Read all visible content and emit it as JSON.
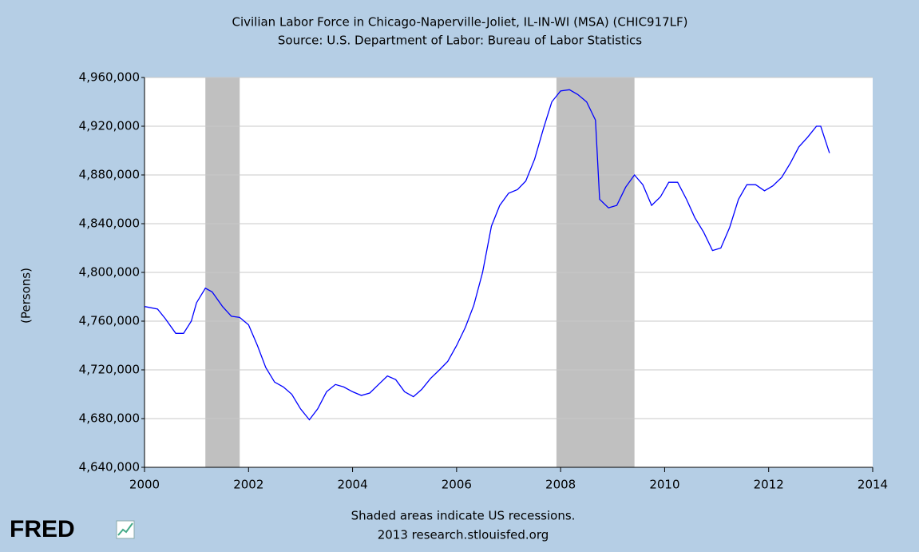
{
  "chart_data": {
    "type": "line",
    "title": "Civilian Labor Force in Chicago-Naperville-Joliet, IL-IN-WI (MSA) (CHIC917LF)",
    "subtitle": "Source: U.S. Department of Labor: Bureau of Labor Statistics",
    "y_label": "(Persons)",
    "note": "Shaded areas indicate US recessions.",
    "credit": "2013 research.stlouisfed.org",
    "logo": "FRED",
    "xlim": [
      2000,
      2014
    ],
    "xticks": [
      2000,
      2002,
      2004,
      2006,
      2008,
      2010,
      2012,
      2014
    ],
    "ylim": [
      4640000,
      4960000
    ],
    "yticks": [
      {
        "value": 4640000,
        "label": "4,640,000"
      },
      {
        "value": 4680000,
        "label": "4,680,000"
      },
      {
        "value": 4720000,
        "label": "4,720,000"
      },
      {
        "value": 4760000,
        "label": "4,760,000"
      },
      {
        "value": 4800000,
        "label": "4,800,000"
      },
      {
        "value": 4840000,
        "label": "4,840,000"
      },
      {
        "value": 4880000,
        "label": "4,880,000"
      },
      {
        "value": 4920000,
        "label": "4,920,000"
      },
      {
        "value": 4960000,
        "label": "4,960,000"
      }
    ],
    "grid": true,
    "recessions": [
      [
        2001.17,
        2001.83
      ],
      [
        2007.92,
        2009.42
      ]
    ],
    "recession_color": "#c0c0c0",
    "series": [
      {
        "color": "#0000ff",
        "x": [
          2000.0,
          2000.25,
          2000.4,
          2000.6,
          2000.75,
          2000.9,
          2001.0,
          2001.17,
          2001.3,
          2001.5,
          2001.67,
          2001.83,
          2002.0,
          2002.17,
          2002.33,
          2002.5,
          2002.67,
          2002.83,
          2003.0,
          2003.17,
          2003.33,
          2003.5,
          2003.67,
          2003.83,
          2004.0,
          2004.17,
          2004.33,
          2004.5,
          2004.67,
          2004.83,
          2005.0,
          2005.17,
          2005.33,
          2005.5,
          2005.67,
          2005.83,
          2006.0,
          2006.17,
          2006.33,
          2006.5,
          2006.67,
          2006.83,
          2007.0,
          2007.17,
          2007.33,
          2007.5,
          2007.67,
          2007.83,
          2008.0,
          2008.17,
          2008.33,
          2008.5,
          2008.67,
          2008.75,
          2008.92,
          2009.08,
          2009.25,
          2009.42,
          2009.58,
          2009.75,
          2009.92,
          2010.08,
          2010.25,
          2010.42,
          2010.58,
          2010.75,
          2010.92,
          2011.08,
          2011.25,
          2011.42,
          2011.58,
          2011.75,
          2011.92,
          2012.08,
          2012.25,
          2012.42,
          2012.58,
          2012.75,
          2012.92,
          2013.0,
          2013.17
        ],
        "values": [
          4772000,
          4770000,
          4762000,
          4750000,
          4750000,
          4760000,
          4775000,
          4787000,
          4784000,
          4772000,
          4764000,
          4763000,
          4757000,
          4740000,
          4722000,
          4710000,
          4706000,
          4700000,
          4688000,
          4679000,
          4688000,
          4702000,
          4708000,
          4706000,
          4702000,
          4699000,
          4701000,
          4708000,
          4715000,
          4712000,
          4702000,
          4698000,
          4704000,
          4713000,
          4720000,
          4727000,
          4740000,
          4755000,
          4773000,
          4800000,
          4838000,
          4855000,
          4865000,
          4868000,
          4875000,
          4893000,
          4918000,
          4940000,
          4949000,
          4950000,
          4946000,
          4940000,
          4925000,
          4860000,
          4853000,
          4855000,
          4870000,
          4880000,
          4872000,
          4855000,
          4862000,
          4874000,
          4874000,
          4860000,
          4845000,
          4833000,
          4818000,
          4820000,
          4837000,
          4860000,
          4872000,
          4872000,
          4867000,
          4871000,
          4878000,
          4890000,
          4903000,
          4911000,
          4920000,
          4920000,
          4898000
        ]
      }
    ]
  }
}
